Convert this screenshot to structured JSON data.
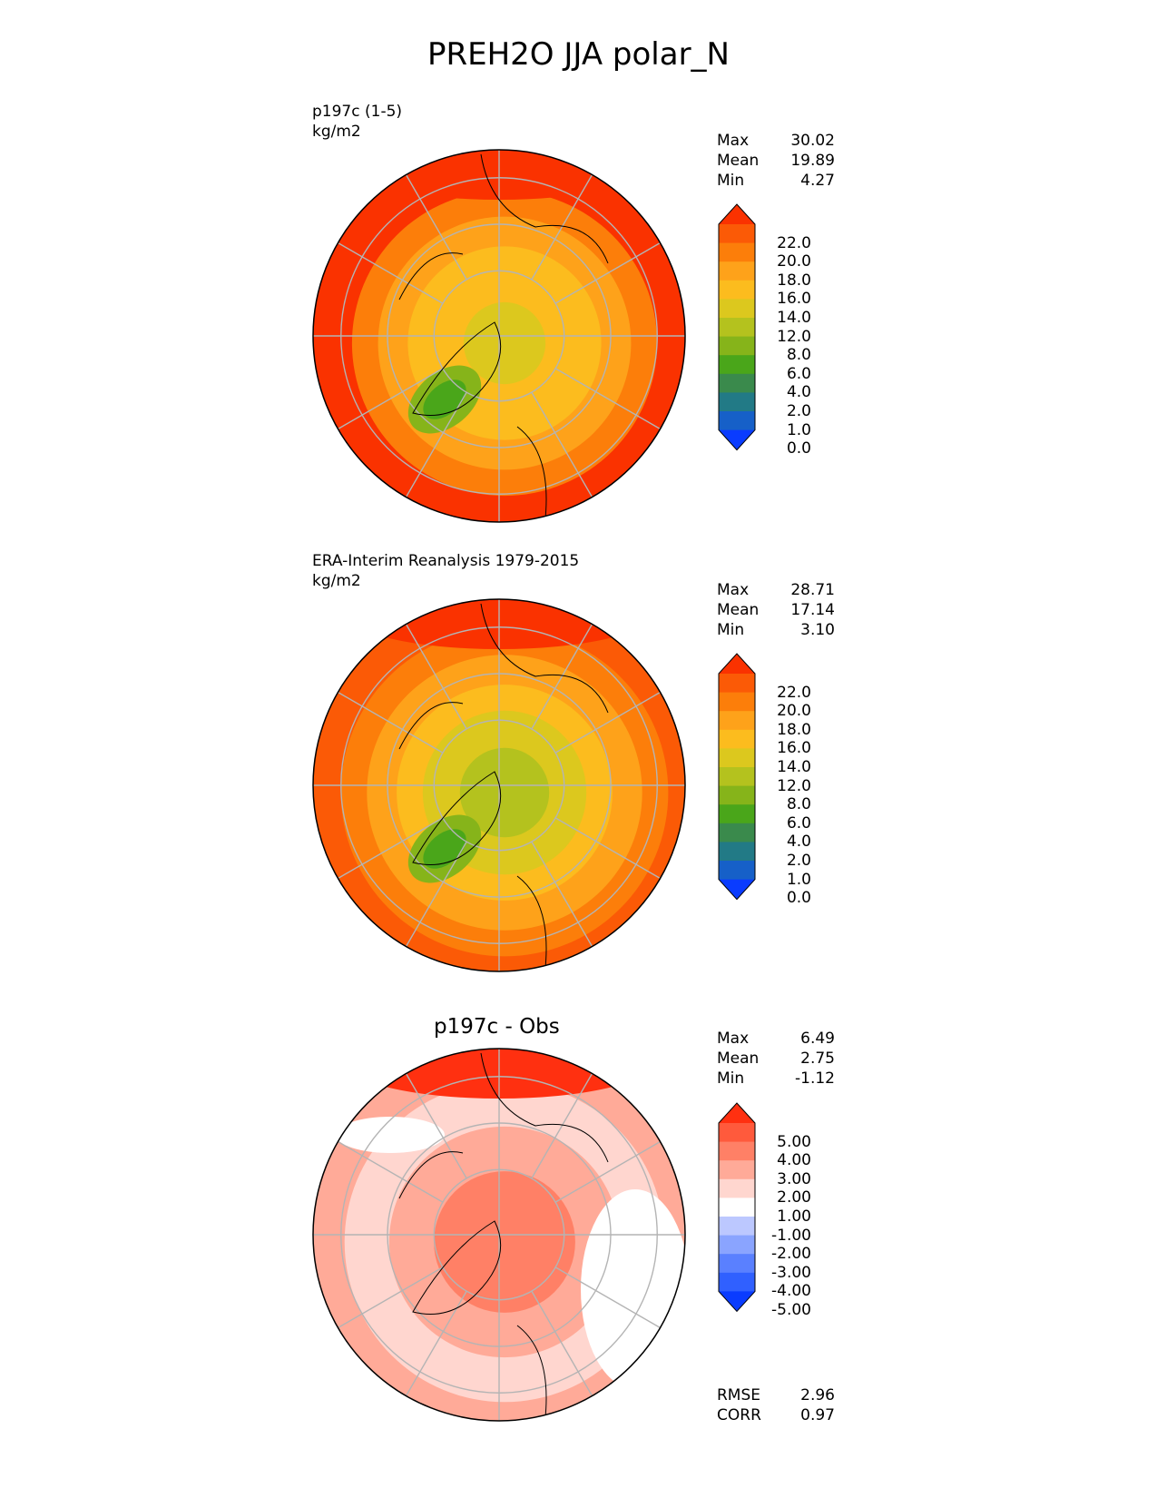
{
  "figure_title": "PREH2O JJA polar_N",
  "colors": {
    "abs_scale": [
      "#0a3cff",
      "#1660c8",
      "#227a86",
      "#3a8a4c",
      "#4aa61a",
      "#86b41a",
      "#b4c21e",
      "#dcc81e",
      "#fcbc1e",
      "#fea21a",
      "#fc7e0a",
      "#fb5a06",
      "#fa3200"
    ],
    "diff_scale": [
      "#0a3cff",
      "#3060ff",
      "#5a80ff",
      "#8aa4ff",
      "#bcc8ff",
      "#ffffff",
      "#ffd6cf",
      "#ffaa98",
      "#ff8066",
      "#ff5a3c",
      "#ff3010"
    ],
    "coast": "#000000",
    "grid": "#b4b4b4"
  },
  "chart_data": [
    {
      "type": "heatmap",
      "projection": "polar stereographic (north)",
      "title": "p197c (1-5)",
      "units": "kg/m2",
      "stats": {
        "max_label": "Max",
        "max": "30.02",
        "mean_label": "Mean",
        "mean": "19.89",
        "min_label": "Min",
        "min": "4.27"
      },
      "colorbar": {
        "ticks": [
          "22.0",
          "20.0",
          "18.0",
          "16.0",
          "14.0",
          "12.0",
          "8.0",
          "6.0",
          "4.0",
          "2.0",
          "1.0",
          "0.0"
        ],
        "extend": "both"
      }
    },
    {
      "type": "heatmap",
      "projection": "polar stereographic (north)",
      "title": "ERA-Interim Reanalysis 1979-2015",
      "units": "kg/m2",
      "stats": {
        "max_label": "Max",
        "max": "28.71",
        "mean_label": "Mean",
        "mean": "17.14",
        "min_label": "Min",
        "min": "3.10"
      },
      "colorbar": {
        "ticks": [
          "22.0",
          "20.0",
          "18.0",
          "16.0",
          "14.0",
          "12.0",
          "8.0",
          "6.0",
          "4.0",
          "2.0",
          "1.0",
          "0.0"
        ],
        "extend": "both"
      }
    },
    {
      "type": "heatmap",
      "projection": "polar stereographic (north)",
      "title": "p197c - Obs",
      "units": "",
      "stats": {
        "max_label": "Max",
        "max": "6.49",
        "mean_label": "Mean",
        "mean": "2.75",
        "min_label": "Min",
        "min": "-1.12"
      },
      "colorbar": {
        "ticks": [
          "5.00",
          "4.00",
          "3.00",
          "2.00",
          "1.00",
          "-1.00",
          "-2.00",
          "-3.00",
          "-4.00",
          "-5.00"
        ],
        "extend": "both"
      },
      "metrics": {
        "rmse_label": "RMSE",
        "rmse": "2.96",
        "corr_label": "CORR",
        "corr": "0.97"
      }
    }
  ]
}
